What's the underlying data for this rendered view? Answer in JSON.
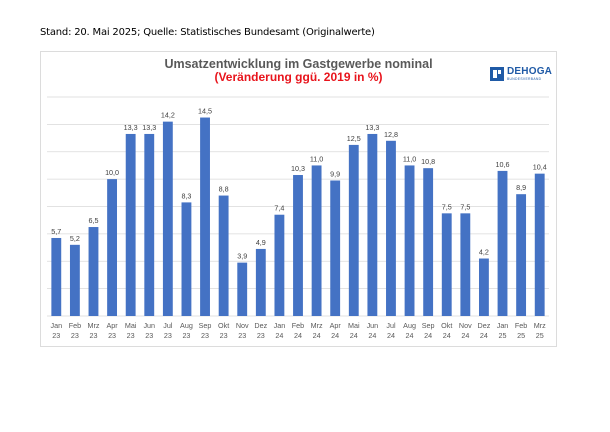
{
  "header": {
    "stand_text": "Stand: 20. Mai 2025; Quelle: Statistisches Bundesamt (Originalwerte)"
  },
  "logo": {
    "name": "DEHOGA",
    "subtitle": "BUNDESVERBAND",
    "color": "#1f5aa6"
  },
  "chart_data": {
    "type": "bar",
    "title": "Umsatzentwicklung im Gastgewerbe nominal",
    "subtitle": "(Veränderung ggü. 2019 in %)",
    "categories": [
      [
        "Jan",
        "23"
      ],
      [
        "Feb",
        "23"
      ],
      [
        "Mrz",
        "23"
      ],
      [
        "Apr",
        "23"
      ],
      [
        "Mai",
        "23"
      ],
      [
        "Jun",
        "23"
      ],
      [
        "Jul",
        "23"
      ],
      [
        "Aug",
        "23"
      ],
      [
        "Sep",
        "23"
      ],
      [
        "Okt",
        "23"
      ],
      [
        "Nov",
        "23"
      ],
      [
        "Dez",
        "23"
      ],
      [
        "Jan",
        "24"
      ],
      [
        "Feb",
        "24"
      ],
      [
        "Mrz",
        "24"
      ],
      [
        "Apr",
        "24"
      ],
      [
        "Mai",
        "24"
      ],
      [
        "Jun",
        "24"
      ],
      [
        "Jul",
        "24"
      ],
      [
        "Aug",
        "24"
      ],
      [
        "Sep",
        "24"
      ],
      [
        "Okt",
        "24"
      ],
      [
        "Nov",
        "24"
      ],
      [
        "Dez",
        "24"
      ],
      [
        "Jan",
        "25"
      ],
      [
        "Feb",
        "25"
      ],
      [
        "Mrz",
        "25"
      ]
    ],
    "values": [
      5.7,
      5.2,
      6.5,
      10.0,
      13.3,
      13.3,
      14.2,
      8.3,
      14.5,
      8.8,
      3.9,
      4.9,
      7.4,
      10.3,
      11.0,
      9.9,
      12.5,
      13.3,
      12.8,
      11.0,
      10.8,
      7.5,
      7.5,
      4.2,
      10.6,
      8.9,
      10.4
    ],
    "value_labels": [
      "5,7",
      "5,2",
      "6,5",
      "10,0",
      "13,3",
      "13,3",
      "14,2",
      "8,3",
      "14,5",
      "8,8",
      "3,9",
      "4,9",
      "7,4",
      "10,3",
      "11,0",
      "9,9",
      "12,5",
      "13,3",
      "12,8",
      "11,0",
      "10,8",
      "7,5",
      "7,5",
      "4,2",
      "10,6",
      "8,9",
      "10,4"
    ],
    "ylim": [
      0,
      16
    ],
    "y_gridlines": [
      0,
      2,
      4,
      6,
      8,
      10,
      12,
      14,
      16
    ],
    "grid": true,
    "bar_color": "#4472c4",
    "grid_color": "#d9d9d9",
    "title_color": "#595959",
    "subtitle_color": "#e8141c"
  }
}
